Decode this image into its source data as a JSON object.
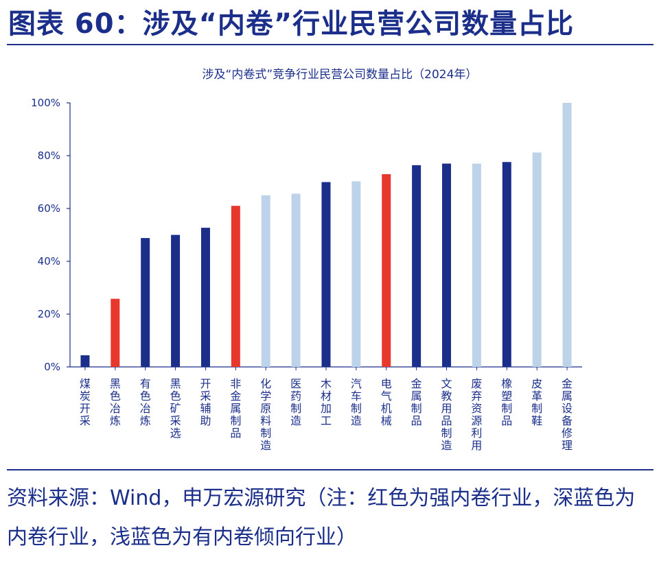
{
  "figure_title": "图表 60：涉及“内卷”行业民营公司数量占比",
  "source_note": "资料来源：Wind，申万宏源研究（注：红色为强内卷行业，深蓝色为内卷行业，浅蓝色为有内卷倾向行业）",
  "colors": {
    "strong_involution": "#e8372c",
    "involution": "#1a2e8a",
    "involution_tendency": "#bdd3ea",
    "axis": "#1a2e8a",
    "text": "#1a2e8a"
  },
  "chart_data": {
    "type": "bar",
    "title": "涉及“内卷式”竞争行业民营公司数量占比（2024年）",
    "xlabel": "",
    "ylabel": "",
    "ylim": [
      0,
      100
    ],
    "yticks": [
      "0%",
      "20%",
      "40%",
      "60%",
      "80%",
      "100%"
    ],
    "grid": false,
    "categories": [
      "煤炭开采",
      "黑色冶炼",
      "有色冶炼",
      "黑色矿采选",
      "开采辅助",
      "非金属制品",
      "化学原料制造",
      "医药制造",
      "木材加工",
      "汽车制造",
      "电气机械",
      "金属制品",
      "文教用品制造",
      "废弃资源利用",
      "橡塑制品",
      "皮革制鞋",
      "金属设备修理"
    ],
    "values": [
      4.4,
      25.8,
      48.8,
      50.0,
      52.7,
      61.0,
      65.0,
      65.6,
      70.0,
      70.3,
      73.0,
      76.4,
      77.0,
      77.0,
      77.6,
      81.2,
      100.0
    ],
    "bar_colors": [
      "involution",
      "strong_involution",
      "involution",
      "involution",
      "involution",
      "strong_involution",
      "involution_tendency",
      "involution_tendency",
      "involution",
      "involution_tendency",
      "strong_involution",
      "involution",
      "involution",
      "involution_tendency",
      "involution",
      "involution_tendency",
      "involution_tendency"
    ]
  }
}
